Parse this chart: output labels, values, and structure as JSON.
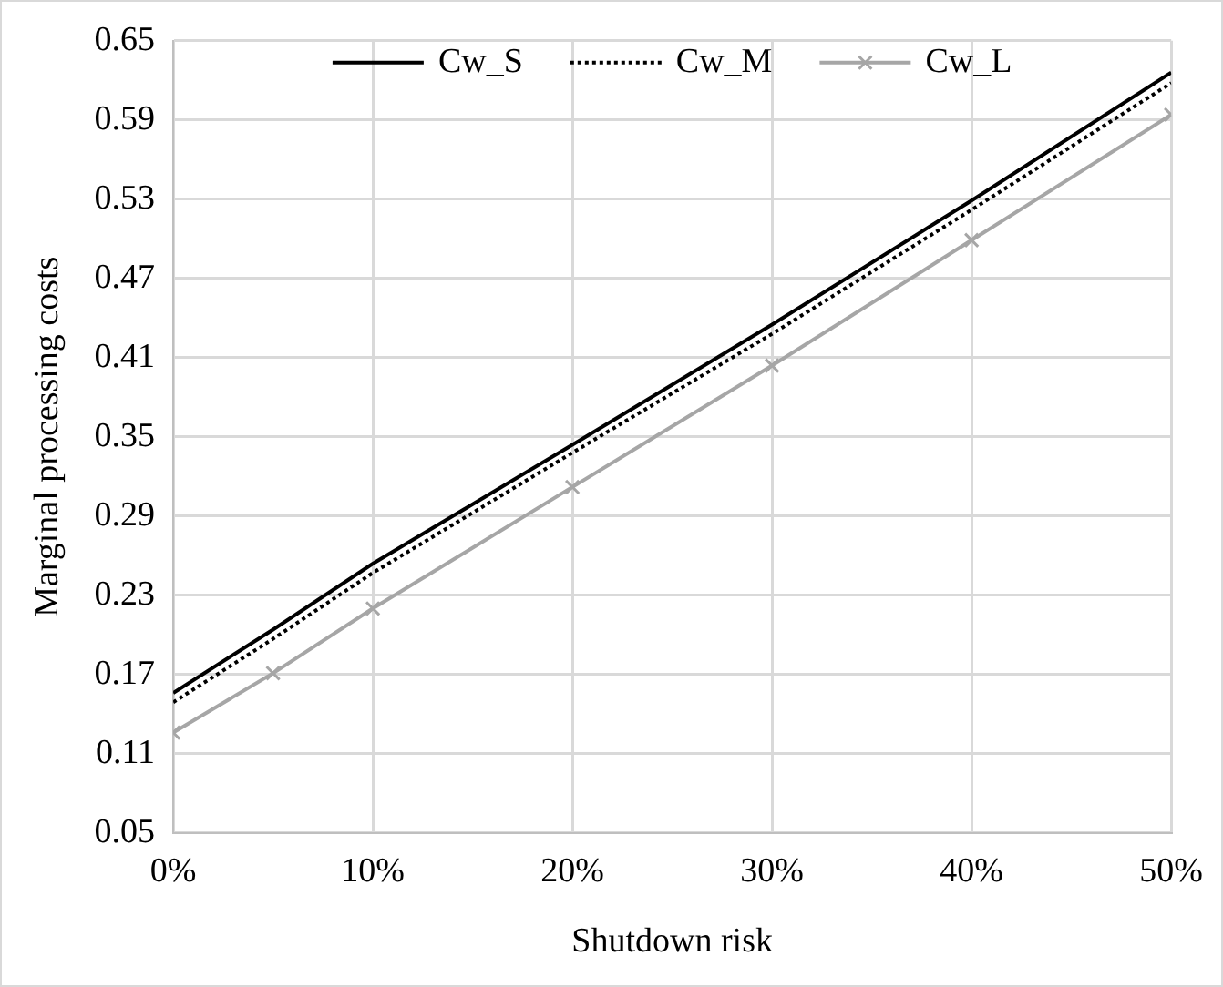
{
  "chart_data": {
    "type": "line",
    "xlabel": "Shutdown risk",
    "ylabel": "Marginal processing costs",
    "x": [
      0,
      5,
      10,
      20,
      30,
      40,
      50
    ],
    "xlim": [
      0,
      50
    ],
    "xticks": [
      {
        "value": 0,
        "label": "0%"
      },
      {
        "value": 10,
        "label": "10%"
      },
      {
        "value": 20,
        "label": "20%"
      },
      {
        "value": 30,
        "label": "30%"
      },
      {
        "value": 40,
        "label": "40%"
      },
      {
        "value": 50,
        "label": "50%"
      }
    ],
    "ylim": [
      0.05,
      0.65
    ],
    "yticks": [
      0.05,
      0.11,
      0.17,
      0.23,
      0.29,
      0.35,
      0.41,
      0.47,
      0.53,
      0.59,
      0.65
    ],
    "grid": true,
    "legend": "top",
    "series": [
      {
        "name": "Cw_S",
        "color": "#000000",
        "line_style": "solid",
        "marker": "none",
        "values": [
          0.156,
          0.204,
          0.254,
          0.344,
          0.435,
          0.529,
          0.626
        ]
      },
      {
        "name": "Cw_M",
        "color": "#000000",
        "line_style": "dotted",
        "marker": "none",
        "values": [
          0.149,
          0.197,
          0.247,
          0.338,
          0.428,
          0.522,
          0.618
        ]
      },
      {
        "name": "Cw_L",
        "color": "#a6a6a6",
        "line_style": "solid",
        "marker": "cross",
        "values": [
          0.126,
          0.171,
          0.22,
          0.312,
          0.404,
          0.499,
          0.594
        ]
      }
    ]
  }
}
